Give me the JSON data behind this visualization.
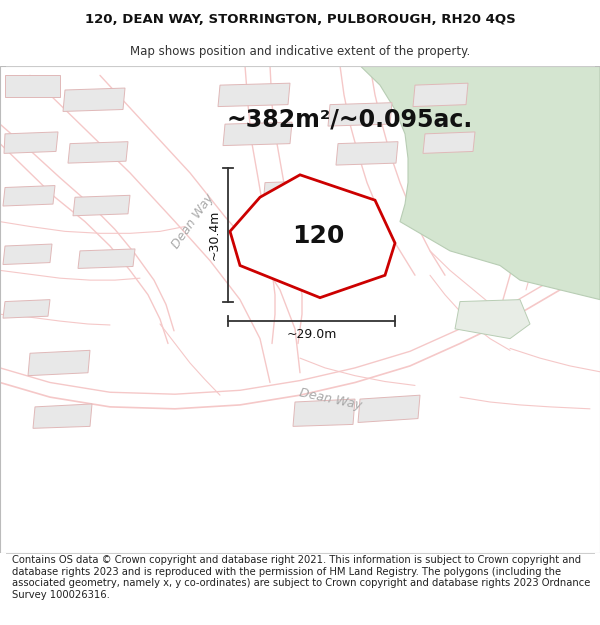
{
  "title_line1": "120, DEAN WAY, STORRINGTON, PULBOROUGH, RH20 4QS",
  "title_line2": "Map shows position and indicative extent of the property.",
  "area_label": "~382m²/~0.095ac.",
  "property_number": "120",
  "dim_vertical": "~30.4m",
  "dim_horizontal": "~29.0m",
  "road_label_left": "Dean Way",
  "road_label_bottom": "Dean Way",
  "footer_text": "Contains OS data © Crown copyright and database right 2021. This information is subject to Crown copyright and database rights 2023 and is reproduced with the permission of HM Land Registry. The polygons (including the associated geometry, namely x, y co-ordinates) are subject to Crown copyright and database rights 2023 Ordnance Survey 100026316.",
  "map_bg": "#ffffff",
  "road_color": "#f5c8c8",
  "property_stroke": "#cc0000",
  "green_fill": "#d4e5d0",
  "green_stroke": "#b8cdb4",
  "building_fill": "#e8e8e8",
  "building_stroke": "#e0b8b8",
  "title_fontsize": 9.5,
  "subtitle_fontsize": 8.5,
  "area_fontsize": 17,
  "prop_num_fontsize": 18,
  "road_label_fontsize": 9,
  "footer_fontsize": 7.2
}
